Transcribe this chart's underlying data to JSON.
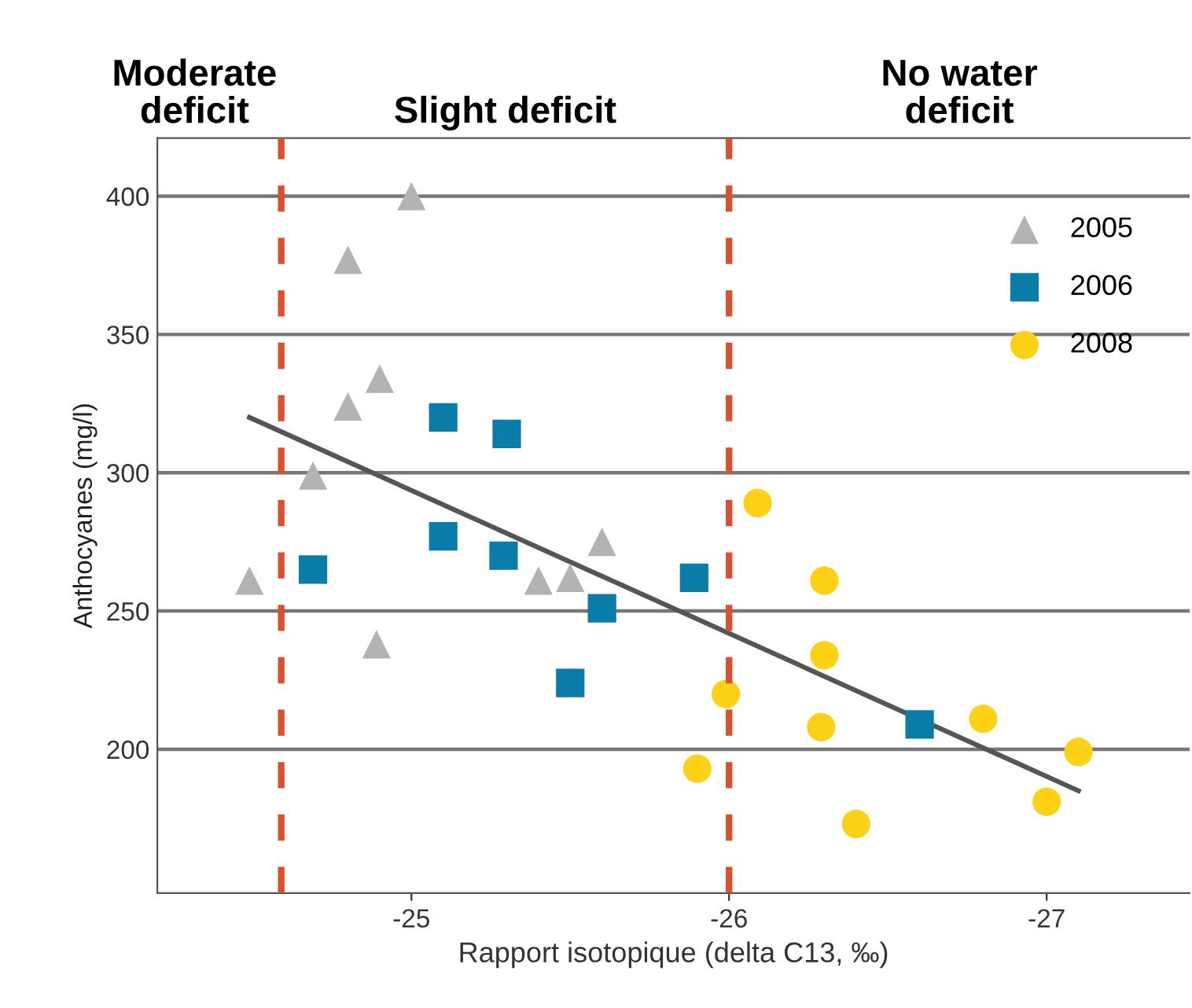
{
  "chart_data": {
    "type": "scatter",
    "xlabel": "Rapport isotopique (delta C13, ‰)",
    "ylabel": "Anthocyanes (mg/l)",
    "annotations": [
      "Moderate deficit",
      "Slight deficit",
      "No water deficit"
    ],
    "xlim": [
      -24.2,
      -27.45
    ],
    "xticks": [
      -25,
      -26,
      -27
    ],
    "ylim": [
      148,
      421
    ],
    "yticks": [
      200,
      250,
      300,
      350,
      400
    ],
    "grid": "y",
    "legend": "top right",
    "series": [
      {
        "name": "2005",
        "color": "#b3b3b3",
        "marker": "triangle",
        "x": [
          -25.0,
          -24.8,
          -24.9,
          -24.8,
          -24.69,
          -24.49,
          -24.89,
          -25.6,
          -25.4,
          -25.5
        ],
        "values": [
          400,
          377,
          334,
          324,
          299,
          261,
          238,
          275,
          261,
          262
        ]
      },
      {
        "name": "2006",
        "color": "#0a7ca8",
        "marker": "square",
        "x": [
          -24.69,
          -25.1,
          -25.3,
          -25.1,
          -25.29,
          -25.6,
          -25.5,
          -25.89,
          -26.6
        ],
        "values": [
          265,
          320,
          314,
          277,
          270,
          251,
          224,
          262,
          209
        ]
      },
      {
        "name": "2008",
        "color": "#fcd116",
        "marker": "circle",
        "x": [
          -26.09,
          -26.3,
          -26.3,
          -25.99,
          -26.29,
          -26.8,
          -25.9,
          -27.1,
          -26.4,
          -27.0
        ],
        "values": [
          289,
          261,
          234,
          220,
          208,
          211,
          193,
          199,
          173,
          181
        ]
      },
      {
        "type": "line",
        "color": "#555555",
        "marker": "none",
        "x": [
          -24.49,
          -27.1
        ],
        "values": [
          320,
          185
        ]
      }
    ],
    "ref_lines": [
      {
        "axis": "x",
        "value": -24.59,
        "color": "#d9502f",
        "line_style": "dashed"
      },
      {
        "axis": "x",
        "value": -26.0,
        "color": "#d9502f",
        "line_style": "dashed"
      }
    ]
  }
}
